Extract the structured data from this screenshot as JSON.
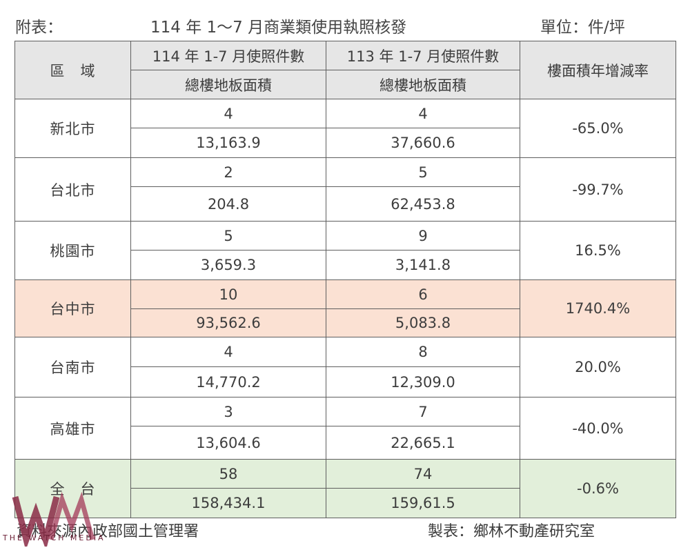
{
  "header": {
    "prefix": "附表：",
    "title": "114 年 1～7 月商業類使用執照核發",
    "unit": "單位：件/坪"
  },
  "table": {
    "col_region": "區　域",
    "col_114_count": "114 年 1-7 月使照件數",
    "col_113_count": "113 年 1-7 月使照件數",
    "col_area": "總樓地板面積",
    "col_rate": "樓面積年增減率",
    "rows": [
      {
        "region": "新北市",
        "c114": "4",
        "a114": "13,163.9",
        "c113": "4",
        "a113": "37,660.6",
        "rate": "-65.0%"
      },
      {
        "region": "台北市",
        "c114": "2",
        "a114": "204.8",
        "c113": "5",
        "a113": "62,453.8",
        "rate": "-99.7%"
      },
      {
        "region": "桃園市",
        "c114": "5",
        "a114": "3,659.3",
        "c113": "9",
        "a113": "3,141.8",
        "rate": "16.5%"
      },
      {
        "region": "台中市",
        "c114": "10",
        "a114": "93,562.6",
        "c113": "6",
        "a113": "5,083.8",
        "rate": "1740.4%"
      },
      {
        "region": "台南市",
        "c114": "4",
        "a114": "14,770.2",
        "c113": "8",
        "a113": "12,309.0",
        "rate": "20.0%"
      },
      {
        "region": "高雄市",
        "c114": "3",
        "a114": "13,604.6",
        "c113": "7",
        "a113": "22,665.1",
        "rate": "-40.0%"
      },
      {
        "region": "全　台",
        "c114": "58",
        "a114": "158,434.1",
        "c113": "74",
        "a113": "159,61.5",
        "rate": "-0.6%"
      }
    ]
  },
  "footer": {
    "source": "資料來源內政部國土管理署",
    "maker": "製表：鄉林不動產研究室"
  },
  "watermark": {
    "text": "THE WATCH MEDIA",
    "color": "#8a2a45"
  }
}
